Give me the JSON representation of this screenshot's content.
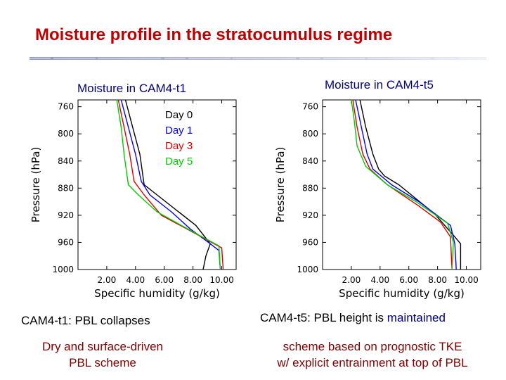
{
  "slide": {
    "title": "Moisture profile in the stratocumulus regime",
    "captions": {
      "left_line1": "CAM4-t1:  PBL collapses",
      "left_line2": "Dry and surface-driven",
      "left_line3": "PBL scheme",
      "right_line1_prefix": "CAM4-t5:  PBL height is ",
      "right_line1_highlight": "maintained",
      "right_line2": "scheme based on prognostic TKE",
      "right_line3": "w/ explicit entrainment at top of PBL"
    },
    "colors": {
      "title": "#c00000",
      "day0": "#000000",
      "day1": "#0000ff",
      "day3": "#dd0000",
      "day5": "#00cc00"
    }
  },
  "chart_data": [
    {
      "type": "line",
      "title": "Moisture in CAM4-t1",
      "xlabel": "Specific humidity (g/kg)",
      "ylabel": "Pressure (hPa)",
      "xlim": [
        0,
        11
      ],
      "ylim": [
        1000,
        750
      ],
      "y_inverted": true,
      "xticks": [
        "2.00",
        "4.00",
        "6.00",
        "8.00",
        "10.00"
      ],
      "xtick_values": [
        2,
        4,
        6,
        8,
        10
      ],
      "yticks": [
        "760",
        "800",
        "840",
        "880",
        "920",
        "960",
        "1000"
      ],
      "ytick_values": [
        760,
        800,
        840,
        880,
        920,
        960,
        1000
      ],
      "legend_placement": "top-right",
      "series": [
        {
          "name": "Day 0",
          "color": "#000000",
          "x": [
            3.3,
            3.8,
            4.3,
            4.6,
            5.5,
            8.2,
            9.2,
            8.9,
            8.7
          ],
          "y": [
            750,
            790,
            830,
            875,
            890,
            935,
            962,
            980,
            1000
          ]
        },
        {
          "name": "Day 1",
          "color": "#0000ff",
          "x": [
            3.0,
            3.5,
            4.0,
            4.4,
            5.0,
            6.5,
            7.8,
            9.2,
            9.8,
            9.9
          ],
          "y": [
            750,
            790,
            830,
            870,
            890,
            915,
            940,
            962,
            972,
            1000
          ]
        },
        {
          "name": "Day 3",
          "color": "#dd0000",
          "x": [
            2.8,
            3.2,
            3.6,
            3.9,
            4.6,
            5.8,
            8.6,
            10.0,
            10.1
          ],
          "y": [
            750,
            790,
            830,
            870,
            890,
            920,
            952,
            968,
            1000
          ]
        },
        {
          "name": "Day 5",
          "color": "#00cc00",
          "x": [
            2.7,
            3.0,
            3.2,
            3.5,
            4.2,
            5.5,
            8.3,
            9.8,
            9.9
          ],
          "y": [
            750,
            790,
            830,
            875,
            890,
            915,
            948,
            965,
            1000
          ]
        }
      ]
    },
    {
      "type": "line",
      "title": "Moisture in CAM4-t5",
      "xlabel": "Specific humidity (g/kg)",
      "ylabel": "Pressure (hPa)",
      "xlim": [
        0,
        11
      ],
      "ylim": [
        1000,
        750
      ],
      "y_inverted": true,
      "xticks": [
        "2.00",
        "4.00",
        "6.00",
        "8.00",
        "10.00"
      ],
      "xtick_values": [
        2,
        4,
        6,
        8,
        10
      ],
      "yticks": [
        "760",
        "800",
        "840",
        "880",
        "920",
        "960",
        "1000"
      ],
      "ytick_values": [
        760,
        800,
        840,
        880,
        920,
        960,
        1000
      ],
      "series": [
        {
          "name": "Day 0",
          "color": "#000000",
          "x": [
            2.6,
            3.0,
            3.5,
            3.9,
            4.3,
            5.3,
            7.8,
            9.2,
            9.6,
            9.6
          ],
          "y": [
            750,
            790,
            830,
            852,
            862,
            875,
            918,
            952,
            962,
            1000
          ]
        },
        {
          "name": "Day 1",
          "color": "#0000ff",
          "x": [
            2.3,
            2.7,
            3.1,
            3.5,
            4.8,
            6.7,
            8.9,
            9.2,
            9.3
          ],
          "y": [
            750,
            790,
            830,
            852,
            875,
            900,
            935,
            962,
            1000
          ]
        },
        {
          "name": "Day 3",
          "color": "#dd0000",
          "x": [
            2.1,
            2.4,
            2.8,
            3.3,
            4.5,
            6.6,
            8.2,
            8.9,
            9.0
          ],
          "y": [
            750,
            790,
            830,
            852,
            875,
            905,
            930,
            952,
            1000
          ]
        },
        {
          "name": "Day 5",
          "color": "#00cc00",
          "x": [
            2.0,
            2.2,
            2.4,
            3.0,
            4.5,
            6.5,
            8.7,
            9.1,
            9.0
          ],
          "y": [
            750,
            780,
            818,
            848,
            875,
            900,
            932,
            960,
            1000
          ]
        }
      ]
    }
  ]
}
